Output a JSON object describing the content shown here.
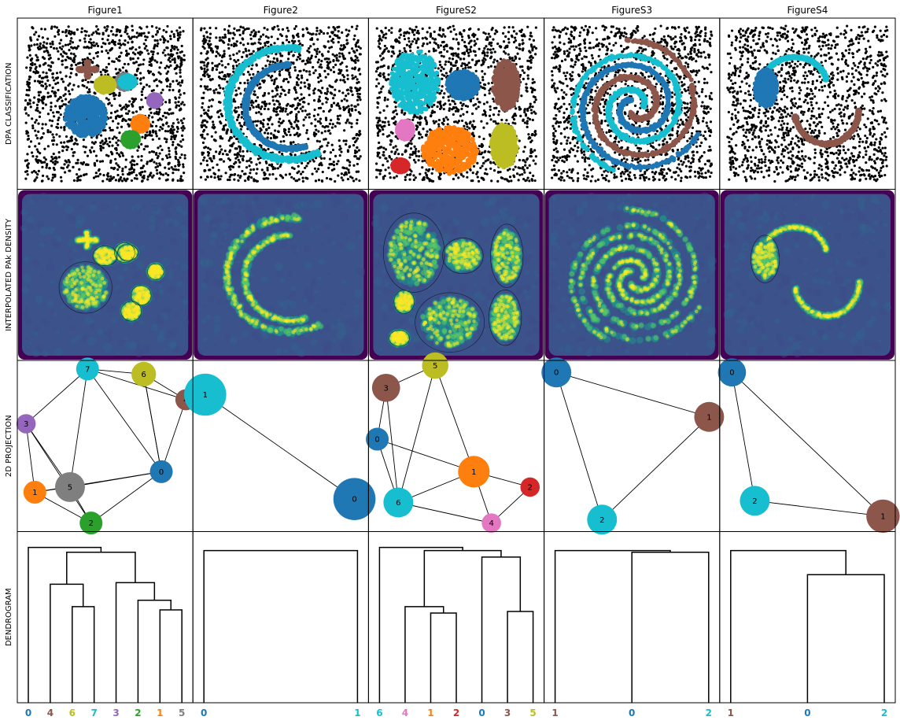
{
  "columns": [
    {
      "id": "figure1",
      "title": "Figure1"
    },
    {
      "id": "figure2",
      "title": "Figure2"
    },
    {
      "id": "figures2",
      "title": "FigureS2"
    },
    {
      "id": "figures3",
      "title": "FigureS3"
    },
    {
      "id": "figures4",
      "title": "FigureS4"
    }
  ],
  "rows": [
    {
      "id": "dpa",
      "label": "DPA CLASSIFICATION"
    },
    {
      "id": "density",
      "label": "INTERPOLATED PAk DENSITY"
    },
    {
      "id": "projection",
      "label": "2D PROJECTION"
    },
    {
      "id": "dendrogram",
      "label": "DENDROGRAM"
    }
  ],
  "palette": [
    "#1f77b4",
    "#ff7f0e",
    "#2ca02c",
    "#d62728",
    "#9467bd",
    "#8c564b",
    "#e377c2",
    "#7f7f7f",
    "#bcbd22",
    "#17becf"
  ],
  "noise_color": "#000000",
  "density_colormap": [
    "#440154",
    "#3b528b",
    "#21918c",
    "#5ec962",
    "#fde725"
  ],
  "chart_data": [
    {
      "type": "scatter",
      "row": "dpa",
      "column": "Figure1",
      "clusters": [
        {
          "id": 0,
          "center": [
            0.38,
            0.42
          ],
          "radius": [
            0.13,
            0.13
          ]
        },
        {
          "id": 1,
          "center": [
            0.72,
            0.37
          ],
          "radius": [
            0.05,
            0.05
          ]
        },
        {
          "id": 2,
          "center": [
            0.66,
            0.27
          ],
          "radius": [
            0.05,
            0.05
          ]
        },
        {
          "id": 4,
          "center": [
            0.81,
            0.52
          ],
          "radius": [
            0.04,
            0.04
          ]
        },
        {
          "id": 5,
          "center": [
            0.39,
            0.72
          ],
          "radius": [
            0.06,
            0.05
          ],
          "shape": "cross"
        },
        {
          "id": 7,
          "center": [
            0.62,
            0.64
          ],
          "radius": [
            0.05,
            0.05
          ]
        },
        {
          "id": 8,
          "center": [
            0.5,
            0.62
          ],
          "radius": [
            0.06,
            0.05
          ]
        },
        {
          "id": 9,
          "center": [
            0.64,
            0.64
          ],
          "radius": [
            0.05,
            0.04
          ]
        }
      ]
    },
    {
      "type": "scatter",
      "row": "dpa",
      "column": "Figure2",
      "clusters": [
        {
          "id": 9,
          "shape": "arc",
          "center": [
            0.55,
            0.5
          ],
          "radius": [
            0.38,
            0.36
          ],
          "angles": [
            80,
            300
          ]
        },
        {
          "id": 0,
          "shape": "arc",
          "center": [
            0.56,
            0.48
          ],
          "radius": [
            0.28,
            0.27
          ],
          "angles": [
            90,
            290
          ]
        }
      ]
    },
    {
      "type": "scatter",
      "row": "dpa",
      "column": "FigureS2",
      "clusters": [
        {
          "id": 9,
          "center": [
            0.24,
            0.64
          ],
          "radius": [
            0.15,
            0.2
          ]
        },
        {
          "id": 0,
          "center": [
            0.54,
            0.62
          ],
          "radius": [
            0.1,
            0.09
          ]
        },
        {
          "id": 5,
          "center": [
            0.81,
            0.62
          ],
          "radius": [
            0.08,
            0.16
          ]
        },
        {
          "id": 6,
          "center": [
            0.18,
            0.33
          ],
          "radius": [
            0.05,
            0.06
          ]
        },
        {
          "id": 1,
          "center": [
            0.46,
            0.2
          ],
          "radius": [
            0.17,
            0.15
          ]
        },
        {
          "id": 8,
          "center": [
            0.8,
            0.23
          ],
          "radius": [
            0.08,
            0.14
          ]
        },
        {
          "id": 3,
          "center": [
            0.15,
            0.1
          ],
          "radius": [
            0.05,
            0.04
          ]
        }
      ]
    },
    {
      "type": "scatter",
      "row": "dpa",
      "column": "FigureS3",
      "clusters": [
        {
          "id": 9,
          "shape": "spiral",
          "center": [
            0.52,
            0.48
          ],
          "turns": 1.7,
          "phase": 0
        },
        {
          "id": 0,
          "shape": "spiral",
          "center": [
            0.52,
            0.48
          ],
          "turns": 1.6,
          "phase": 2.1
        },
        {
          "id": 5,
          "shape": "spiral",
          "center": [
            0.52,
            0.48
          ],
          "turns": 1.6,
          "phase": 4.2
        }
      ]
    },
    {
      "type": "scatter",
      "row": "dpa",
      "column": "FigureS4",
      "clusters": [
        {
          "id": 9,
          "shape": "arc",
          "center": [
            0.42,
            0.62
          ],
          "radius": [
            0.2,
            0.18
          ],
          "angles": [
            10,
            180
          ]
        },
        {
          "id": 0,
          "center": [
            0.24,
            0.6
          ],
          "radius": [
            0.07,
            0.12
          ]
        },
        {
          "id": 5,
          "shape": "arc",
          "center": [
            0.62,
            0.46
          ],
          "radius": [
            0.2,
            0.22
          ],
          "angles": [
            190,
            360
          ]
        }
      ]
    },
    {
      "type": "graph",
      "row": "projection",
      "column": "Figure1",
      "nodes": [
        {
          "label": "0",
          "color": 0,
          "x": 0.82,
          "y": 0.35,
          "size": 0.065
        },
        {
          "label": "1",
          "color": 1,
          "x": 0.1,
          "y": 0.23,
          "size": 0.065
        },
        {
          "label": "2",
          "color": 2,
          "x": 0.42,
          "y": 0.05,
          "size": 0.065
        },
        {
          "label": "3",
          "color": 4,
          "x": 0.05,
          "y": 0.63,
          "size": 0.055
        },
        {
          "label": "4",
          "color": 5,
          "x": 0.96,
          "y": 0.77,
          "size": 0.06
        },
        {
          "label": "5",
          "color": 7,
          "x": 0.3,
          "y": 0.26,
          "size": 0.085
        },
        {
          "label": "6",
          "color": 8,
          "x": 0.72,
          "y": 0.92,
          "size": 0.07
        },
        {
          "label": "7",
          "color": 9,
          "x": 0.4,
          "y": 0.95,
          "size": 0.065
        }
      ],
      "edges": [
        [
          7,
          6
        ],
        [
          7,
          4
        ],
        [
          6,
          4
        ],
        [
          7,
          3
        ],
        [
          7,
          5
        ],
        [
          6,
          0
        ],
        [
          4,
          0
        ],
        [
          3,
          1
        ],
        [
          3,
          5
        ],
        [
          3,
          2
        ],
        [
          1,
          5
        ],
        [
          5,
          2
        ],
        [
          5,
          0
        ],
        [
          1,
          0
        ],
        [
          2,
          0
        ],
        [
          7,
          0
        ],
        [
          6,
          0
        ],
        [
          1,
          2
        ]
      ]
    },
    {
      "type": "graph",
      "row": "projection",
      "column": "Figure2",
      "nodes": [
        {
          "label": "0",
          "color": 0,
          "x": 0.92,
          "y": 0.19,
          "size": 0.12
        },
        {
          "label": "1",
          "color": 9,
          "x": 0.07,
          "y": 0.8,
          "size": 0.12
        }
      ],
      "edges": [
        [
          0,
          1
        ]
      ]
    },
    {
      "type": "graph",
      "row": "projection",
      "column": "FigureS2",
      "nodes": [
        {
          "label": "0",
          "color": 0,
          "x": 0.05,
          "y": 0.54,
          "size": 0.065
        },
        {
          "label": "1",
          "color": 1,
          "x": 0.6,
          "y": 0.35,
          "size": 0.09
        },
        {
          "label": "2",
          "color": 3,
          "x": 0.92,
          "y": 0.26,
          "size": 0.055
        },
        {
          "label": "3",
          "color": 5,
          "x": 0.1,
          "y": 0.84,
          "size": 0.08
        },
        {
          "label": "4",
          "color": 6,
          "x": 0.7,
          "y": 0.05,
          "size": 0.055
        },
        {
          "label": "5",
          "color": 8,
          "x": 0.38,
          "y": 0.97,
          "size": 0.075
        },
        {
          "label": "6",
          "color": 9,
          "x": 0.17,
          "y": 0.17,
          "size": 0.085
        }
      ],
      "edges": [
        [
          3,
          5
        ],
        [
          3,
          6
        ],
        [
          0,
          6
        ],
        [
          0,
          3
        ],
        [
          0,
          1
        ],
        [
          5,
          1
        ],
        [
          6,
          1
        ],
        [
          6,
          4
        ],
        [
          1,
          4
        ],
        [
          1,
          2
        ],
        [
          2,
          4
        ],
        [
          6,
          5
        ]
      ]
    },
    {
      "type": "graph",
      "row": "projection",
      "column": "FigureS3",
      "nodes": [
        {
          "label": "0",
          "color": 0,
          "x": 0.07,
          "y": 0.93,
          "size": 0.085
        },
        {
          "label": "1",
          "color": 5,
          "x": 0.94,
          "y": 0.67,
          "size": 0.085
        },
        {
          "label": "2",
          "color": 9,
          "x": 0.33,
          "y": 0.07,
          "size": 0.085
        }
      ],
      "edges": [
        [
          0,
          1
        ],
        [
          0,
          2
        ],
        [
          2,
          1
        ]
      ]
    },
    {
      "type": "graph",
      "row": "projection",
      "column": "FigureS4",
      "nodes": [
        {
          "label": "0",
          "color": 0,
          "x": 0.07,
          "y": 0.93,
          "size": 0.08
        },
        {
          "label": "1",
          "color": 5,
          "x": 0.93,
          "y": 0.09,
          "size": 0.095
        },
        {
          "label": "2",
          "color": 9,
          "x": 0.2,
          "y": 0.18,
          "size": 0.085
        }
      ],
      "edges": [
        [
          0,
          1
        ],
        [
          0,
          2
        ],
        [
          2,
          1
        ]
      ]
    },
    {
      "type": "dendrogram",
      "row": "dendrogram",
      "column": "Figure1",
      "leaves": [
        {
          "label": "0",
          "color": 0
        },
        {
          "label": "4",
          "color": 5
        },
        {
          "label": "6",
          "color": 8
        },
        {
          "label": "7",
          "color": 9
        },
        {
          "label": "3",
          "color": 4
        },
        {
          "label": "2",
          "color": 2
        },
        {
          "label": "1",
          "color": 1
        },
        {
          "label": "5",
          "color": 7
        }
      ],
      "merges": [
        [
          2,
          3,
          0.6
        ],
        [
          6,
          7,
          0.58
        ],
        [
          5,
          9,
          0.64
        ],
        [
          4,
          10,
          0.75
        ],
        [
          1,
          8,
          0.74
        ],
        [
          12,
          11,
          0.94
        ],
        [
          0,
          13,
          0.97
        ]
      ]
    },
    {
      "type": "dendrogram",
      "row": "dendrogram",
      "column": "Figure2",
      "leaves": [
        {
          "label": "0",
          "color": 0
        },
        {
          "label": "1",
          "color": 9
        }
      ],
      "merges": [
        [
          0,
          1,
          0.95
        ]
      ]
    },
    {
      "type": "dendrogram",
      "row": "dendrogram",
      "column": "FigureS2",
      "leaves": [
        {
          "label": "6",
          "color": 9
        },
        {
          "label": "4",
          "color": 6
        },
        {
          "label": "1",
          "color": 1
        },
        {
          "label": "2",
          "color": 3
        },
        {
          "label": "0",
          "color": 0
        },
        {
          "label": "3",
          "color": 5
        },
        {
          "label": "5",
          "color": 8
        }
      ],
      "merges": [
        [
          2,
          3,
          0.56
        ],
        [
          1,
          7,
          0.6
        ],
        [
          5,
          6,
          0.57
        ],
        [
          4,
          9,
          0.91
        ],
        [
          8,
          10,
          0.95
        ],
        [
          0,
          11,
          0.97
        ]
      ]
    },
    {
      "type": "dendrogram",
      "row": "dendrogram",
      "column": "FigureS3",
      "leaves": [
        {
          "label": "1",
          "color": 5
        },
        {
          "label": "0",
          "color": 0
        },
        {
          "label": "2",
          "color": 9
        }
      ],
      "merges": [
        [
          1,
          2,
          0.94
        ],
        [
          0,
          3,
          0.95
        ]
      ]
    },
    {
      "type": "dendrogram",
      "row": "dendrogram",
      "column": "FigureS4",
      "leaves": [
        {
          "label": "1",
          "color": 5
        },
        {
          "label": "0",
          "color": 0
        },
        {
          "label": "2",
          "color": 9
        }
      ],
      "merges": [
        [
          1,
          2,
          0.8
        ],
        [
          0,
          3,
          0.95
        ]
      ]
    }
  ]
}
